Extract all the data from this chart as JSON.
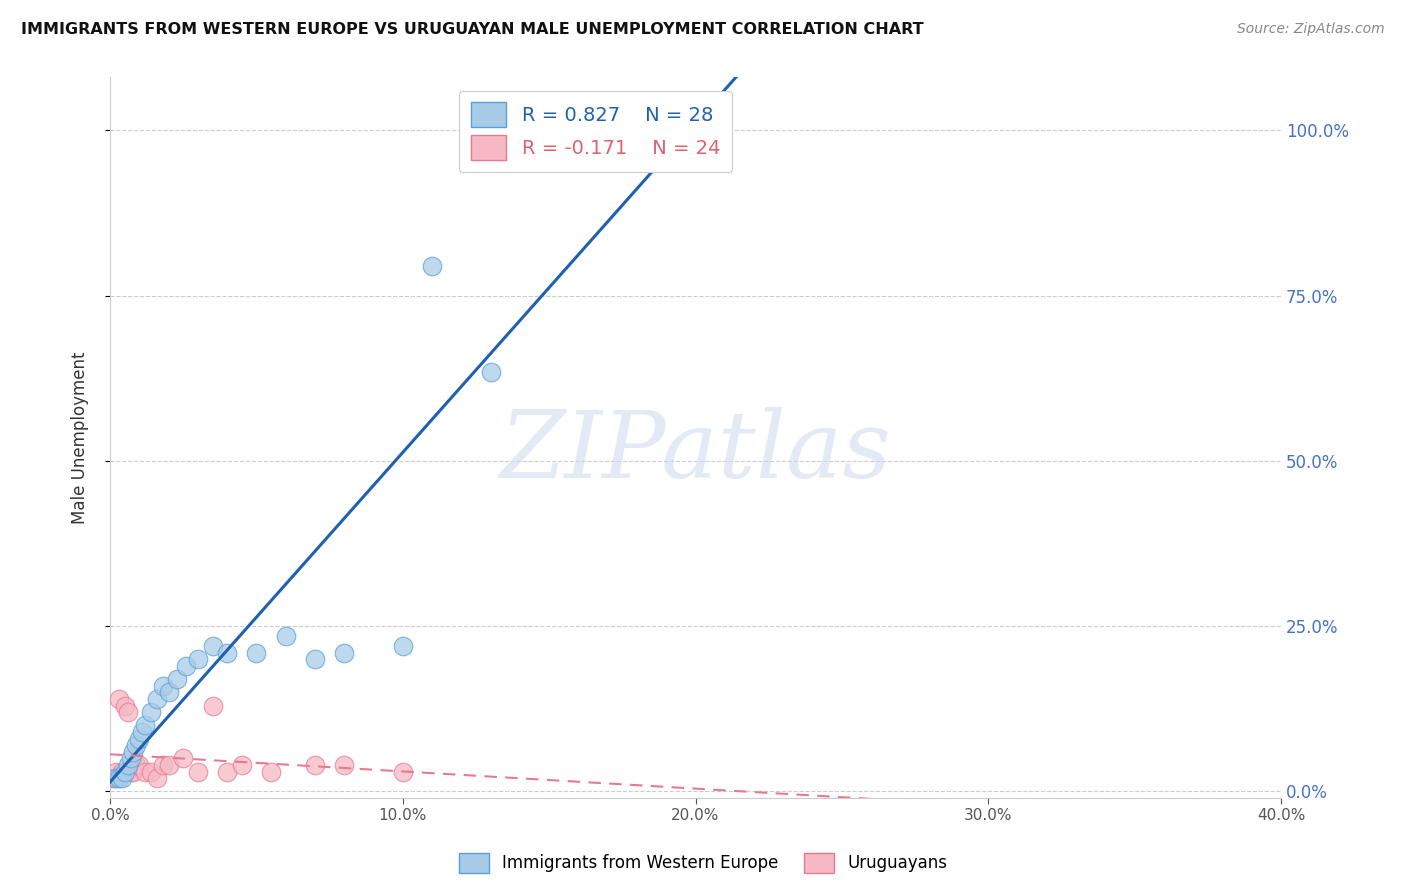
{
  "title": "IMMIGRANTS FROM WESTERN EUROPE VS URUGUAYAN MALE UNEMPLOYMENT CORRELATION CHART",
  "source": "Source: ZipAtlas.com",
  "ylabel": "Male Unemployment",
  "series1_label": "Immigrants from Western Europe",
  "series2_label": "Uruguayans",
  "series1_color": "#a8cce8",
  "series2_color": "#f5b8c4",
  "series1_edge_color": "#5a9fd4",
  "series2_edge_color": "#e87a90",
  "series1_line_color": "#2060b0",
  "series2_line_color": "#e87a90",
  "series1_R": 0.827,
  "series1_N": 28,
  "series2_R": -0.171,
  "series2_N": 24,
  "xlim": [
    0.0,
    0.4
  ],
  "ylim": [
    -0.01,
    1.08
  ],
  "yticks": [
    0.0,
    0.25,
    0.5,
    0.75,
    1.0
  ],
  "xticks": [
    0.0,
    0.1,
    0.2,
    0.3,
    0.4
  ],
  "watermark": "ZIPatlas",
  "series1_x": [
    0.002,
    0.003,
    0.004,
    0.005,
    0.006,
    0.007,
    0.008,
    0.009,
    0.01,
    0.011,
    0.012,
    0.014,
    0.016,
    0.018,
    0.02,
    0.023,
    0.026,
    0.03,
    0.035,
    0.04,
    0.05,
    0.06,
    0.07,
    0.08,
    0.1,
    0.11,
    0.13,
    0.155
  ],
  "series1_y": [
    0.02,
    0.02,
    0.02,
    0.03,
    0.04,
    0.05,
    0.06,
    0.07,
    0.08,
    0.09,
    0.1,
    0.12,
    0.14,
    0.16,
    0.15,
    0.17,
    0.19,
    0.2,
    0.22,
    0.21,
    0.21,
    0.235,
    0.2,
    0.21,
    0.22,
    0.795,
    0.635,
    1.01
  ],
  "series2_x": [
    0.001,
    0.002,
    0.003,
    0.004,
    0.005,
    0.006,
    0.007,
    0.008,
    0.009,
    0.01,
    0.012,
    0.014,
    0.016,
    0.018,
    0.02,
    0.025,
    0.03,
    0.035,
    0.04,
    0.045,
    0.055,
    0.07,
    0.08,
    0.1
  ],
  "series2_y": [
    0.02,
    0.03,
    0.14,
    0.03,
    0.13,
    0.12,
    0.03,
    0.03,
    0.04,
    0.04,
    0.03,
    0.03,
    0.02,
    0.04,
    0.04,
    0.05,
    0.03,
    0.13,
    0.03,
    0.04,
    0.03,
    0.04,
    0.04,
    0.03
  ]
}
